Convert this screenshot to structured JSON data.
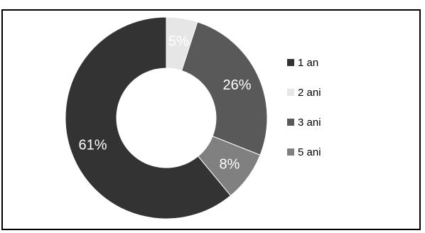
{
  "chart_data": {
    "type": "donut",
    "categories": [
      "1 an",
      "2 ani",
      "3 ani",
      "5 ani"
    ],
    "values": [
      61,
      5,
      26,
      8
    ],
    "labels": [
      "61%",
      "5%",
      "26%",
      "8%"
    ],
    "colors": [
      "#333333",
      "#e6e6e6",
      "#595959",
      "#808080"
    ],
    "legend_position": "right",
    "title": "",
    "xlabel": "",
    "ylabel": ""
  }
}
